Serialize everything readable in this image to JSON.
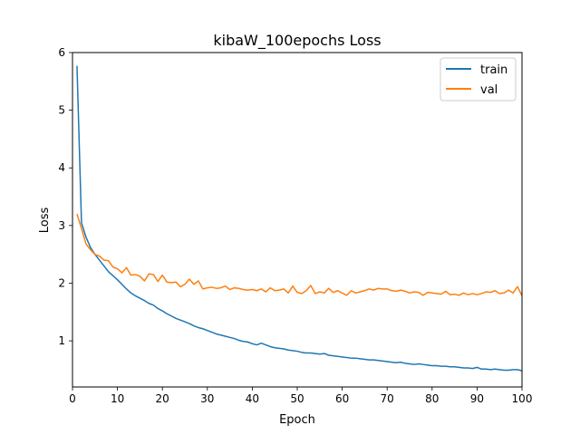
{
  "chart_data": {
    "type": "line",
    "title": "kibaW_100epochs Loss",
    "xlabel": "Epoch",
    "ylabel": "Loss",
    "xlim": [
      0,
      100
    ],
    "ylim": [
      0.2,
      6.0
    ],
    "xticks": [
      0,
      10,
      20,
      30,
      40,
      50,
      60,
      70,
      80,
      90,
      100
    ],
    "yticks": [
      1,
      2,
      3,
      4,
      5,
      6
    ],
    "grid": false,
    "legend": "top-right",
    "x": [
      1,
      2,
      3,
      4,
      5,
      6,
      7,
      8,
      9,
      10,
      11,
      12,
      13,
      14,
      15,
      16,
      17,
      18,
      19,
      20,
      21,
      22,
      23,
      24,
      25,
      26,
      27,
      28,
      29,
      30,
      31,
      32,
      33,
      34,
      35,
      36,
      37,
      38,
      39,
      40,
      41,
      42,
      43,
      44,
      45,
      46,
      47,
      48,
      49,
      50,
      51,
      52,
      53,
      54,
      55,
      56,
      57,
      58,
      59,
      60,
      61,
      62,
      63,
      64,
      65,
      66,
      67,
      68,
      69,
      70,
      71,
      72,
      73,
      74,
      75,
      76,
      77,
      78,
      79,
      80,
      81,
      82,
      83,
      84,
      85,
      86,
      87,
      88,
      89,
      90,
      91,
      92,
      93,
      94,
      95,
      96,
      97,
      98,
      99,
      100
    ],
    "series": [
      {
        "name": "train",
        "color": "#1f77b4",
        "values": [
          5.77,
          3.05,
          2.8,
          2.62,
          2.5,
          2.4,
          2.3,
          2.2,
          2.13,
          2.06,
          1.98,
          1.9,
          1.83,
          1.78,
          1.74,
          1.7,
          1.65,
          1.62,
          1.56,
          1.52,
          1.47,
          1.43,
          1.39,
          1.36,
          1.33,
          1.3,
          1.26,
          1.23,
          1.21,
          1.18,
          1.15,
          1.12,
          1.1,
          1.08,
          1.06,
          1.04,
          1.01,
          0.99,
          0.98,
          0.95,
          0.93,
          0.96,
          0.93,
          0.9,
          0.88,
          0.87,
          0.86,
          0.84,
          0.83,
          0.82,
          0.8,
          0.79,
          0.79,
          0.78,
          0.77,
          0.78,
          0.75,
          0.74,
          0.73,
          0.72,
          0.71,
          0.7,
          0.7,
          0.69,
          0.68,
          0.67,
          0.67,
          0.66,
          0.65,
          0.64,
          0.63,
          0.62,
          0.63,
          0.61,
          0.6,
          0.59,
          0.6,
          0.59,
          0.58,
          0.57,
          0.57,
          0.56,
          0.56,
          0.55,
          0.55,
          0.54,
          0.53,
          0.53,
          0.52,
          0.54,
          0.51,
          0.51,
          0.5,
          0.51,
          0.5,
          0.49,
          0.49,
          0.5,
          0.5,
          0.48
        ]
      },
      {
        "name": "val",
        "color": "#ff7f0e",
        "values": [
          3.2,
          2.95,
          2.68,
          2.58,
          2.5,
          2.47,
          2.4,
          2.39,
          2.28,
          2.25,
          2.18,
          2.27,
          2.14,
          2.15,
          2.12,
          2.04,
          2.16,
          2.15,
          2.03,
          2.14,
          2.02,
          2.01,
          2.02,
          1.94,
          1.98,
          2.07,
          1.98,
          2.04,
          1.9,
          1.92,
          1.93,
          1.91,
          1.92,
          1.95,
          1.89,
          1.92,
          1.91,
          1.89,
          1.88,
          1.89,
          1.87,
          1.9,
          1.85,
          1.92,
          1.87,
          1.88,
          1.9,
          1.83,
          1.95,
          1.84,
          1.82,
          1.87,
          1.96,
          1.82,
          1.85,
          1.83,
          1.91,
          1.84,
          1.87,
          1.83,
          1.79,
          1.87,
          1.83,
          1.85,
          1.87,
          1.9,
          1.88,
          1.91,
          1.9,
          1.9,
          1.87,
          1.86,
          1.88,
          1.86,
          1.83,
          1.85,
          1.84,
          1.79,
          1.84,
          1.83,
          1.82,
          1.81,
          1.86,
          1.8,
          1.81,
          1.79,
          1.83,
          1.8,
          1.82,
          1.8,
          1.82,
          1.85,
          1.84,
          1.87,
          1.82,
          1.83,
          1.88,
          1.83,
          1.94,
          1.78
        ]
      }
    ]
  }
}
